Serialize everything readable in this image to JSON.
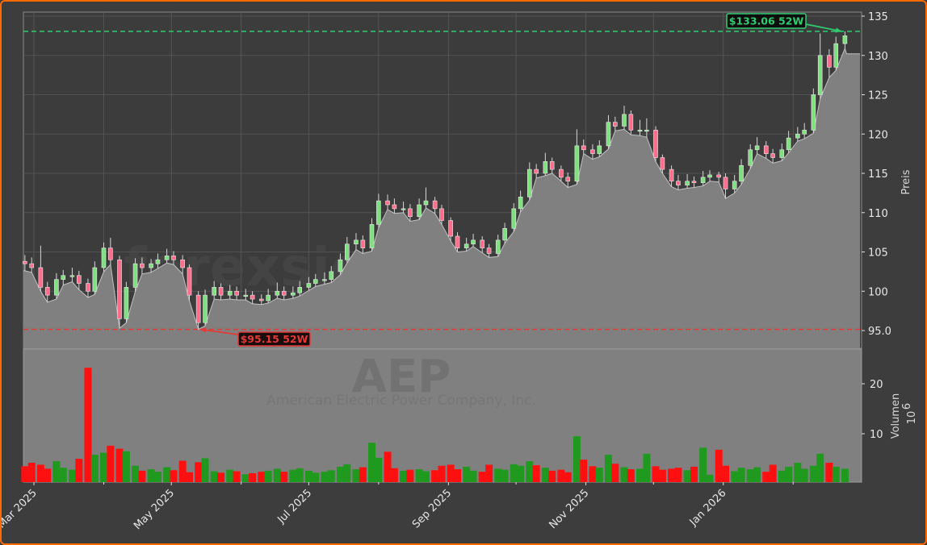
{
  "chart_data": {
    "type": "candlestick",
    "ticker_watermark": "AEP",
    "company_watermark": "American Electric Power Company, Inc.",
    "site_watermark": "forexsignale.trade",
    "price_axis": {
      "label": "Preis",
      "ylim": [
        93.5,
        136.5
      ],
      "ticks": [
        "95.0",
        "100",
        "105",
        "110",
        "115",
        "120",
        "125",
        "130",
        "135"
      ],
      "tick_values": [
        95,
        100,
        105,
        110,
        115,
        120,
        125,
        130,
        135
      ],
      "position": "right"
    },
    "volume_axis": {
      "label": "Volumen",
      "scale_label": "10",
      "scale_exp": "6",
      "ticks": [
        "10",
        "20"
      ],
      "tick_values": [
        10,
        20
      ],
      "ylim": [
        0,
        26.5
      ]
    },
    "x_axis": {
      "ticks": [
        "Mar 2025",
        "May 2025",
        "Jul 2025",
        "Sep 2025",
        "Nov 2025",
        "Jan 2026"
      ],
      "tick_dates": [
        "2025-03-01",
        "2025-05-01",
        "2025-07-01",
        "2025-09-01",
        "2025-11-01",
        "2026-01-01"
      ],
      "minor_grid_dates": [
        "2025-04-01",
        "2025-06-01",
        "2025-08-01",
        "2025-10-01",
        "2025-12-01",
        "2026-02-01"
      ]
    },
    "grid": true,
    "colors": {
      "up_candle": "#7fe07f",
      "down_candle": "#ff6d8c",
      "up_volume": "#1f9a1f",
      "down_volume": "#ff1010",
      "area": "#808080",
      "high_line": "#2ecc71",
      "low_line": "#e53935",
      "border": "#ff6a00",
      "background": "#3d3d3d"
    },
    "annotations": {
      "high": {
        "label": "$133.06 52W",
        "value": 133.06,
        "date": "2026-02-24"
      },
      "low": {
        "label": "$95.15 52W",
        "value": 95.15,
        "date": "2025-05-13"
      }
    },
    "columns": [
      "date",
      "open",
      "high",
      "low",
      "close",
      "volume_millions"
    ],
    "candles": [
      [
        "2025-02-25",
        103.8,
        104.6,
        102.6,
        103.5,
        3.5
      ],
      [
        "2025-02-28",
        103.5,
        104.3,
        102.4,
        103,
        4.2
      ],
      [
        "2025-03-04",
        103,
        105.8,
        100,
        100.5,
        3.8
      ],
      [
        "2025-03-07",
        100.5,
        101.2,
        98.6,
        99.5,
        3.0
      ],
      [
        "2025-03-11",
        99.5,
        102.3,
        99,
        101.5,
        4.5
      ],
      [
        "2025-03-14",
        101.5,
        102.7,
        100.8,
        102,
        3.2
      ],
      [
        "2025-03-18",
        102,
        103,
        101.2,
        102,
        2.8
      ],
      [
        "2025-03-21",
        102,
        102.6,
        100.2,
        101,
        5.0
      ],
      [
        "2025-03-25",
        101,
        101.6,
        99.2,
        100,
        23.2
      ],
      [
        "2025-03-28",
        100,
        103.8,
        99.6,
        103,
        5.8
      ],
      [
        "2025-04-01",
        103,
        106.2,
        102.5,
        105.5,
        6.2
      ],
      [
        "2025-04-04",
        105.5,
        106.8,
        103.4,
        104,
        7.6
      ],
      [
        "2025-04-08",
        104,
        104.5,
        95.3,
        96.5,
        7.0
      ],
      [
        "2025-04-11",
        96.5,
        101.2,
        96,
        100.5,
        6.5
      ],
      [
        "2025-04-15",
        100.5,
        104.2,
        100,
        103.5,
        3.6
      ],
      [
        "2025-04-18",
        103.5,
        104.3,
        102.2,
        103,
        2.6
      ],
      [
        "2025-04-22",
        103,
        104.1,
        102.4,
        103.5,
        2.9
      ],
      [
        "2025-04-25",
        103.5,
        104.8,
        102.9,
        104,
        2.4
      ],
      [
        "2025-04-29",
        104,
        105.4,
        103.6,
        104.5,
        3.3
      ],
      [
        "2025-05-02",
        104.5,
        105.1,
        103.4,
        104,
        2.7
      ],
      [
        "2025-05-06",
        104,
        104.6,
        102.2,
        103,
        4.6
      ],
      [
        "2025-05-09",
        103,
        103.4,
        98.8,
        99.5,
        2.3
      ],
      [
        "2025-05-13",
        99.5,
        100,
        95.15,
        96,
        4.3
      ],
      [
        "2025-05-16",
        96,
        100.2,
        95.6,
        99.5,
        5.1
      ],
      [
        "2025-05-20",
        99.5,
        101.3,
        99,
        100.5,
        2.5
      ],
      [
        "2025-05-23",
        100.5,
        101,
        98.9,
        99.5,
        2.2
      ],
      [
        "2025-05-27",
        99.5,
        100.8,
        99,
        100,
        2.8
      ],
      [
        "2025-05-30",
        100,
        100.6,
        98.9,
        99.5,
        2.5
      ],
      [
        "2025-06-03",
        99.5,
        100.3,
        98.9,
        99.5,
        1.9
      ],
      [
        "2025-06-06",
        99.5,
        100,
        98.4,
        99,
        2.1
      ],
      [
        "2025-06-10",
        99,
        99.6,
        98.3,
        98.8,
        2.4
      ],
      [
        "2025-06-13",
        98.8,
        100.3,
        98.5,
        99.5,
        2.6
      ],
      [
        "2025-06-17",
        99.5,
        101.1,
        99.1,
        100,
        3.0
      ],
      [
        "2025-06-20",
        100,
        100.6,
        98.9,
        99.5,
        2.4
      ],
      [
        "2025-06-24",
        99.5,
        100.6,
        99.1,
        99.8,
        2.8
      ],
      [
        "2025-06-27",
        99.8,
        101.3,
        99.4,
        100.5,
        3.1
      ],
      [
        "2025-07-01",
        100.5,
        101.8,
        100.1,
        101,
        2.6
      ],
      [
        "2025-07-04",
        101,
        102.2,
        100.6,
        101.5,
        2.2
      ],
      [
        "2025-07-08",
        101.5,
        102.4,
        100.9,
        101.5,
        2.4
      ],
      [
        "2025-07-11",
        101.5,
        103.2,
        101.1,
        102.5,
        2.7
      ],
      [
        "2025-07-15",
        102.5,
        104.8,
        102.1,
        104,
        3.4
      ],
      [
        "2025-07-18",
        104,
        106.9,
        103.6,
        106,
        3.9
      ],
      [
        "2025-07-22",
        106,
        107.4,
        105.3,
        106.5,
        2.9
      ],
      [
        "2025-07-25",
        106.5,
        107.1,
        104.8,
        105.5,
        3.3
      ],
      [
        "2025-07-29",
        105.5,
        109.3,
        105.1,
        108.5,
        8.2
      ],
      [
        "2025-08-01",
        108.5,
        112.4,
        108.1,
        111.5,
        5.2
      ],
      [
        "2025-08-05",
        111.5,
        112.3,
        110.4,
        111,
        6.4
      ],
      [
        "2025-08-08",
        111,
        111.8,
        109.9,
        110.5,
        3.1
      ],
      [
        "2025-08-12",
        110.5,
        111.4,
        110,
        110.5,
        2.6
      ],
      [
        "2025-08-15",
        110.5,
        111.1,
        108.9,
        109.5,
        2.8
      ],
      [
        "2025-08-19",
        109.5,
        111.8,
        109.1,
        111,
        2.9
      ],
      [
        "2025-08-22",
        111,
        113.2,
        110.6,
        111.5,
        2.5
      ],
      [
        "2025-08-26",
        111.5,
        112,
        109.9,
        110.5,
        2.7
      ],
      [
        "2025-08-29",
        110.5,
        111,
        108.5,
        109,
        3.6
      ],
      [
        "2025-09-02",
        109,
        109.4,
        106.4,
        107,
        3.8
      ],
      [
        "2025-09-05",
        107,
        107.5,
        105,
        105.5,
        2.9
      ],
      [
        "2025-09-09",
        105.5,
        106.8,
        105.1,
        106,
        3.4
      ],
      [
        "2025-09-12",
        106,
        107.3,
        105.7,
        106.5,
        2.6
      ],
      [
        "2025-09-16",
        106.5,
        107,
        104.9,
        105.5,
        2.4
      ],
      [
        "2025-09-19",
        105.5,
        106,
        104.3,
        104.8,
        3.8
      ],
      [
        "2025-09-23",
        104.8,
        107.2,
        104.4,
        106.5,
        3.0
      ],
      [
        "2025-09-26",
        106.5,
        108.7,
        106.1,
        108,
        2.8
      ],
      [
        "2025-09-30",
        108,
        111.2,
        107.6,
        110.5,
        3.9
      ],
      [
        "2025-10-03",
        110.5,
        112.8,
        110.1,
        112,
        3.6
      ],
      [
        "2025-10-07",
        112,
        116.4,
        111.6,
        115.5,
        4.5
      ],
      [
        "2025-10-10",
        115.5,
        116.2,
        114.4,
        115,
        3.7
      ],
      [
        "2025-10-14",
        115,
        117.6,
        114.7,
        116.5,
        3.2
      ],
      [
        "2025-10-17",
        116.5,
        117,
        115,
        115.5,
        2.6
      ],
      [
        "2025-10-21",
        115.5,
        116,
        114,
        114.5,
        2.8
      ],
      [
        "2025-10-24",
        114.5,
        115.1,
        113.2,
        114,
        2.3
      ],
      [
        "2025-10-28",
        114,
        120.6,
        113.6,
        118.5,
        9.5
      ],
      [
        "2025-10-31",
        118.5,
        119.3,
        117.5,
        118,
        4.8
      ],
      [
        "2025-11-04",
        118,
        118.7,
        116.8,
        117.5,
        3.5
      ],
      [
        "2025-11-07",
        117.5,
        119.2,
        117.1,
        118.5,
        3.2
      ],
      [
        "2025-11-11",
        118.5,
        122.4,
        118.1,
        121.5,
        5.8
      ],
      [
        "2025-11-14",
        121.5,
        122.2,
        120.4,
        121,
        4.0
      ],
      [
        "2025-11-18",
        121,
        123.6,
        120.6,
        122.5,
        3.3
      ],
      [
        "2025-11-21",
        122.5,
        123,
        119.9,
        120.5,
        2.9
      ],
      [
        "2025-11-25",
        120.5,
        121.8,
        119.8,
        120.5,
        3.0
      ],
      [
        "2025-11-28",
        120.5,
        122,
        119.6,
        120.5,
        6.0
      ],
      [
        "2025-12-02",
        120.5,
        121,
        116.5,
        117,
        3.5
      ],
      [
        "2025-12-05",
        117,
        117.4,
        115,
        115.5,
        2.8
      ],
      [
        "2025-12-09",
        115.5,
        116,
        113.3,
        114,
        3.0
      ],
      [
        "2025-12-12",
        114,
        114.8,
        112.9,
        113.5,
        3.2
      ],
      [
        "2025-12-16",
        113.5,
        114.9,
        113.1,
        114,
        2.7
      ],
      [
        "2025-12-19",
        114,
        114.6,
        113.2,
        113.8,
        3.4
      ],
      [
        "2025-12-23",
        113.8,
        115.3,
        113.4,
        114.5,
        7.2
      ],
      [
        "2025-12-26",
        114.5,
        115.4,
        114,
        114.8,
        1.8
      ],
      [
        "2025-12-30",
        114.8,
        115.2,
        113.9,
        114.5,
        6.8
      ],
      [
        "2026-01-02",
        114.5,
        115,
        111.8,
        113,
        3.6
      ],
      [
        "2026-01-06",
        113,
        114.8,
        112.5,
        114,
        2.5
      ],
      [
        "2026-01-09",
        114,
        116.8,
        113.6,
        116,
        3.2
      ],
      [
        "2026-01-13",
        116,
        118.7,
        115.6,
        118,
        2.9
      ],
      [
        "2026-01-16",
        118,
        119.6,
        117.5,
        118.5,
        3.3
      ],
      [
        "2026-01-20",
        118.5,
        119.1,
        116.9,
        117.5,
        2.4
      ],
      [
        "2026-01-23",
        117.5,
        118.1,
        116.3,
        117,
        3.8
      ],
      [
        "2026-01-27",
        117,
        118.8,
        116.6,
        118,
        2.6
      ],
      [
        "2026-01-30",
        118,
        120.4,
        117.6,
        119.5,
        3.4
      ],
      [
        "2026-02-03",
        119.5,
        120.9,
        119.1,
        120,
        4.2
      ],
      [
        "2026-02-06",
        120,
        121.4,
        119.4,
        120.5,
        3.0
      ],
      [
        "2026-02-10",
        120.5,
        125.8,
        120.1,
        125,
        3.6
      ],
      [
        "2026-02-13",
        125,
        132.8,
        124.5,
        130,
        6.0
      ],
      [
        "2026-02-17",
        130,
        130.8,
        127.2,
        128.5,
        4.2
      ],
      [
        "2026-02-20",
        128.5,
        132.4,
        128.1,
        131.5,
        3.4
      ],
      [
        "2026-02-24",
        131.5,
        133.06,
        130.9,
        132.5,
        3.0
      ]
    ]
  }
}
